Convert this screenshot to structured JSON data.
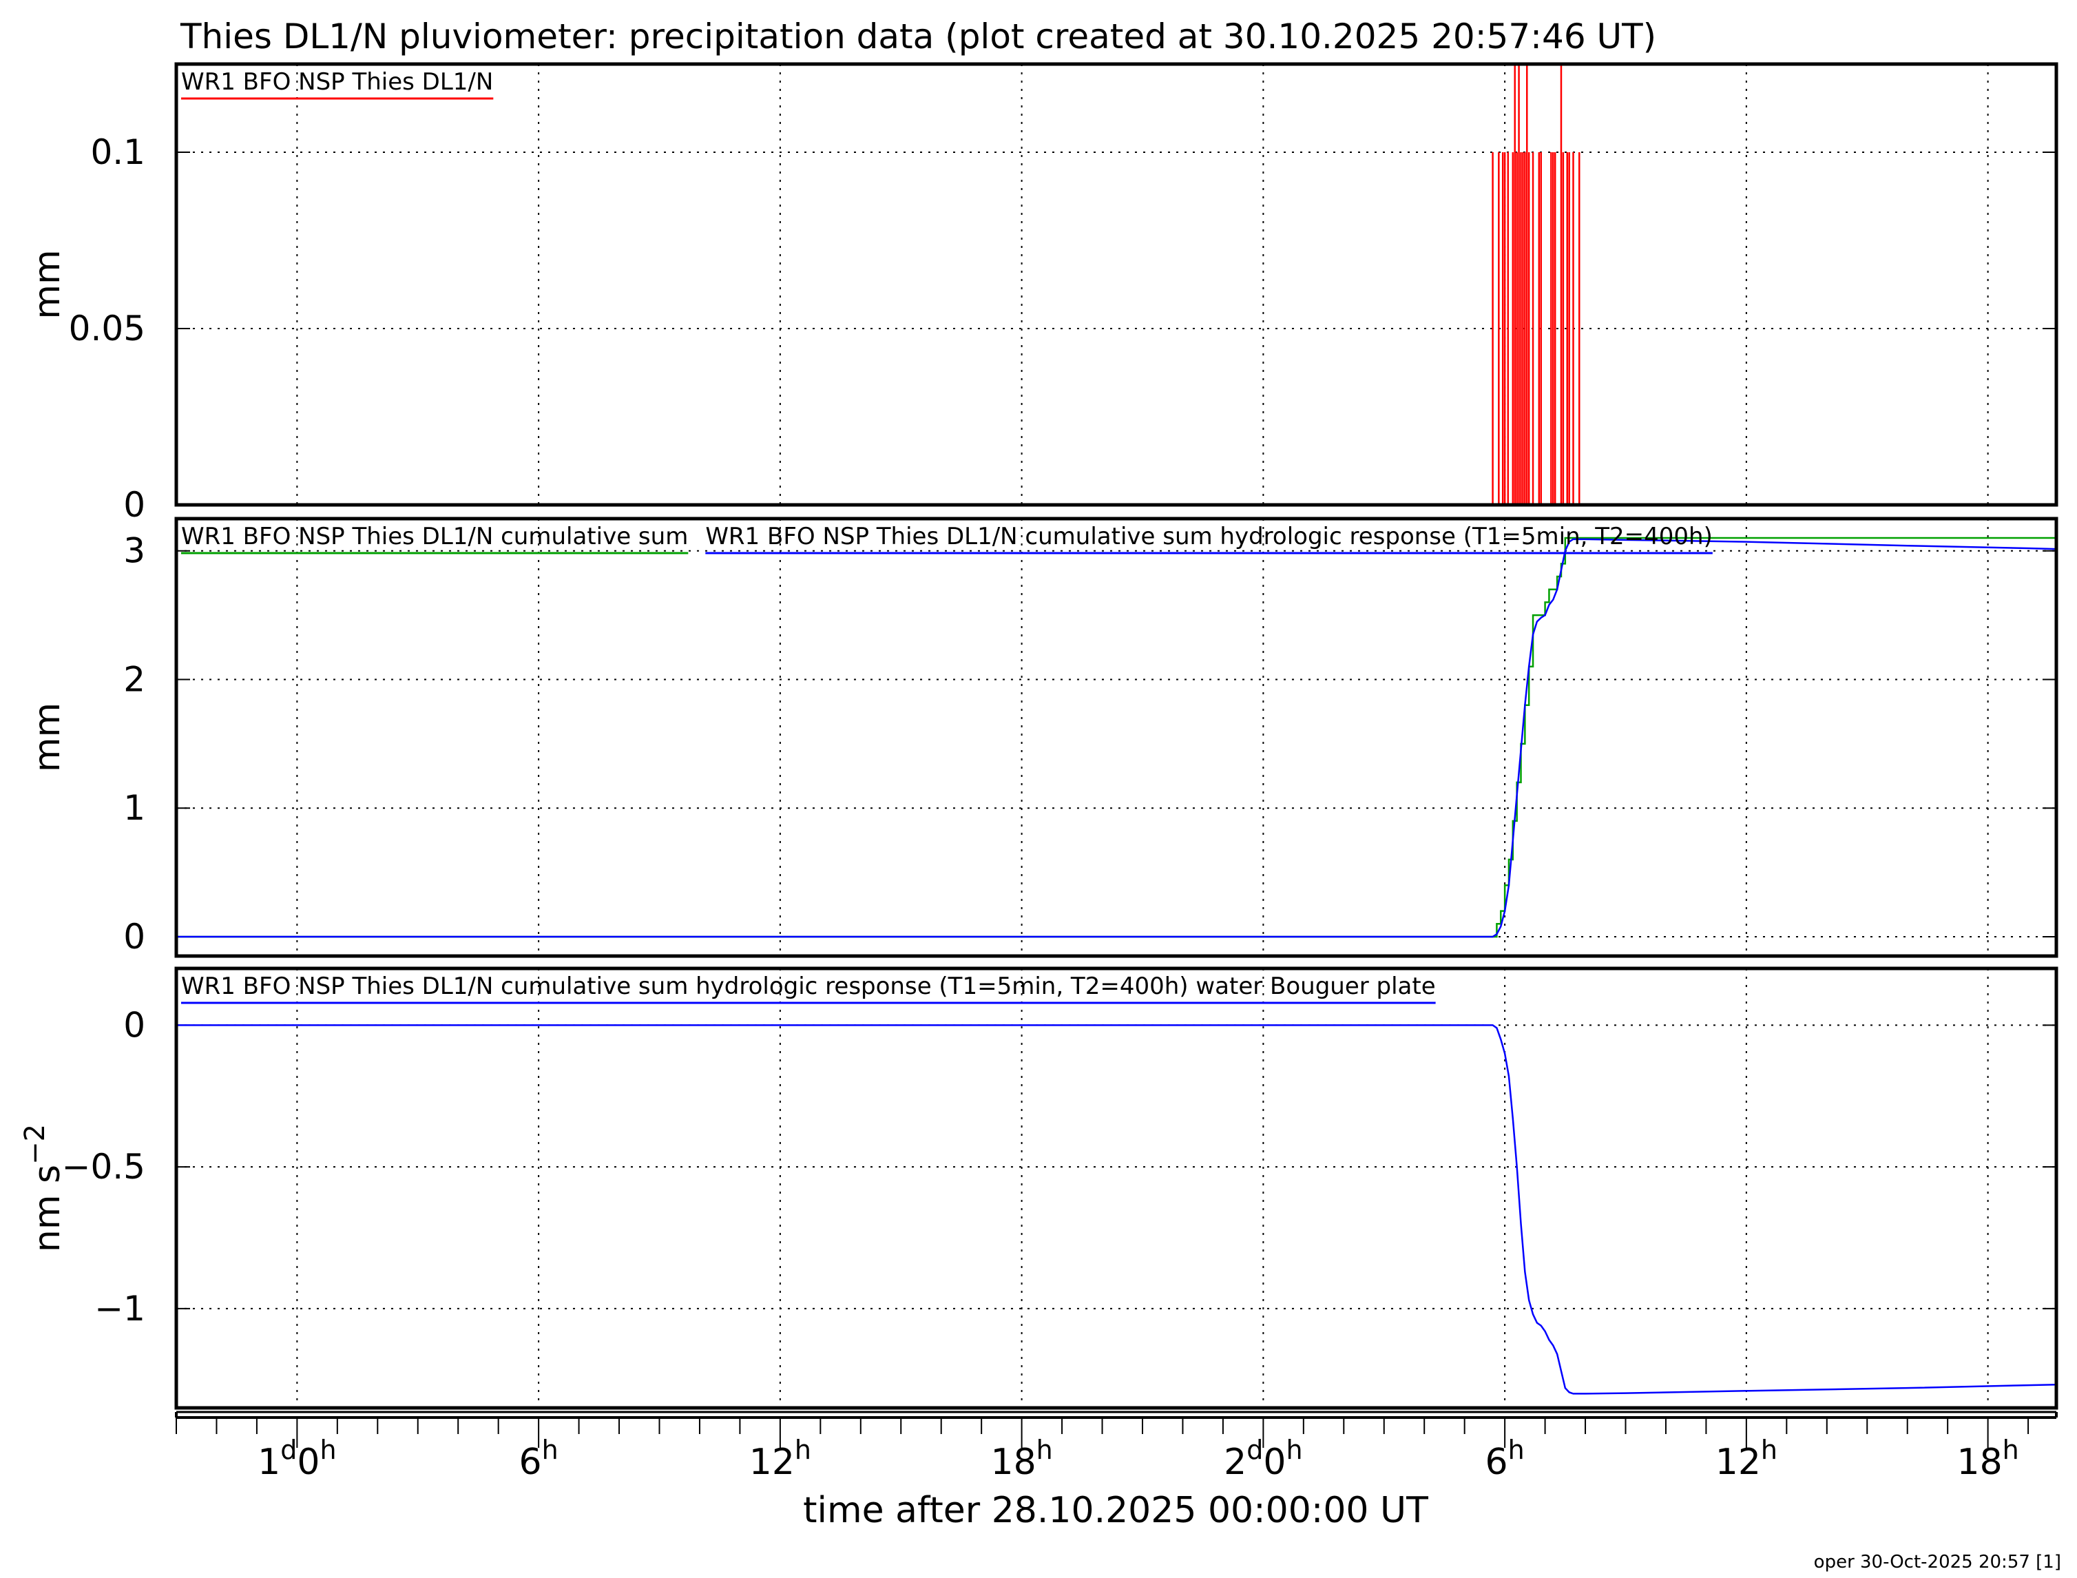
{
  "title": "Thies DL1/N pluviometer: precipitation data (plot created at 30.10.2025 20:57:46 UT)",
  "footer": "oper 30-Oct-2025 20:57 [1]",
  "colors": {
    "red": "#ff0000",
    "green": "#00a000",
    "blue": "#0000ff",
    "grid": "#000000",
    "frame": "#000000"
  },
  "chart_data": [
    {
      "type": "line",
      "panel": "top",
      "ylabel": "mm",
      "ylim": [
        0,
        0.125
      ],
      "yticks": [
        0,
        0.05,
        0.1
      ],
      "ytick_labels": [
        "0",
        "0.05",
        "0.1"
      ],
      "grid": true,
      "series": [
        {
          "name": "WR1 BFO NSP Thies DL1/N",
          "color": "red",
          "style": "spikes",
          "baseline": 0,
          "x": [
            -6,
            29.7,
            29.75,
            29.85,
            29.95,
            30.0,
            30.08,
            30.15,
            30.2,
            30.25,
            30.3,
            30.35,
            30.4,
            30.45,
            30.5,
            30.55,
            30.6,
            30.65,
            30.7,
            30.75,
            30.8,
            30.85,
            30.9,
            30.95,
            31.0,
            31.05,
            31.1,
            31.15,
            31.2,
            31.25,
            31.3,
            31.35,
            31.4,
            31.45,
            31.55,
            31.6,
            31.65,
            31.7,
            31.75,
            31.8,
            31.85,
            31.9,
            31.95,
            32.0,
            32.05,
            32.1,
            32.15,
            32.2,
            32.25,
            32.35,
            32.5,
            32.6,
            32.7,
            32.8,
            32.85,
            32.95,
            33.0,
            33.1,
            33.2,
            33.3,
            33.4,
            33.5,
            33.6,
            33.7,
            33.8,
            33.9,
            34.0,
            34.1,
            34.2,
            34.3,
            34.4,
            34.5,
            34.6,
            34.7,
            34.8,
            34.9,
            35.0,
            35.1,
            35.2,
            35.3,
            35.4,
            35.5,
            35.6,
            35.7,
            35.8,
            35.9,
            36.0,
            36.1,
            36.2,
            36.3,
            36.4,
            36.5,
            36.6,
            36.7,
            36.8,
            36.9,
            37.0,
            37.1,
            37.2,
            37.3,
            37.4,
            37.5,
            37.6,
            37.7,
            37.8,
            37.9,
            38.0,
            38.1,
            38.2,
            38.3,
            38.4,
            38.5,
            38.6,
            38.7,
            38.8,
            38.9,
            39.0,
            39.1,
            39.2,
            39.3,
            39.4,
            39.5,
            39.6,
            39.7,
            39.8,
            39.9,
            40.0,
            40.1,
            40.2,
            40.3,
            40.4,
            40.5,
            40.6,
            40.7,
            40.8,
            40.9,
            41.0,
            41.1,
            41.2,
            41.3,
            41.4,
            41.5,
            41.6,
            41.7,
            41.8,
            41.9,
            42.0,
            42.1,
            42.2,
            42.3,
            42.4,
            42.5,
            42.6,
            42.7,
            42.8,
            42.9,
            43.0,
            43.1
          ],
          "values": [
            0,
            0.1,
            0,
            0.1,
            0.1,
            0.1,
            0.1,
            0,
            0.1,
            0.2,
            0.1,
            0.2,
            0.1,
            0.1,
            0.1,
            0.2,
            0.1,
            0,
            0.1,
            0,
            0,
            0.1,
            0.1,
            0,
            0,
            0,
            0,
            0.1,
            0.1,
            0.1,
            0,
            0,
            0.2,
            0.1,
            0.1,
            0.1,
            0,
            0.1,
            0,
            0,
            0.1,
            0,
            0,
            0,
            0,
            0,
            0,
            0,
            0,
            0,
            0,
            0,
            0,
            0,
            0,
            0,
            0,
            0,
            0,
            0,
            0,
            0,
            0,
            0,
            0,
            0,
            0,
            0,
            0,
            0,
            0,
            0,
            0,
            0,
            0,
            0,
            0,
            0,
            0,
            0,
            0,
            0,
            0,
            0,
            0,
            0,
            0,
            0,
            0,
            0,
            0,
            0,
            0,
            0,
            0,
            0,
            0,
            0,
            0,
            0,
            0,
            0,
            0,
            0,
            0,
            0,
            0,
            0,
            0,
            0,
            0,
            0,
            0,
            0,
            0,
            0,
            0,
            0,
            0,
            0,
            0,
            0,
            0,
            0,
            0,
            0,
            0,
            0,
            0,
            0,
            0,
            0,
            0,
            0,
            0,
            0,
            0,
            0,
            0,
            0,
            0,
            0,
            0,
            0,
            0,
            0,
            0,
            0,
            0,
            0,
            0,
            0,
            0,
            0,
            0,
            0,
            0,
            0
          ]
        }
      ]
    },
    {
      "type": "line",
      "panel": "middle",
      "ylabel": "mm",
      "ylim": [
        -0.15,
        3.25
      ],
      "yticks": [
        0,
        1,
        2,
        3
      ],
      "ytick_labels": [
        "0",
        "1",
        "2",
        "3"
      ],
      "grid": true,
      "series": [
        {
          "name": "WR1 BFO NSP Thies DL1/N cumulative sum",
          "color": "green",
          "style": "step",
          "x": [
            -3,
            29.7,
            29.8,
            29.9,
            30.0,
            30.1,
            30.2,
            30.3,
            30.4,
            30.5,
            30.6,
            30.7,
            30.8,
            30.9,
            31.0,
            31.1,
            31.2,
            31.3,
            31.4,
            31.5,
            31.6,
            31.7,
            31.8,
            31.9,
            32.0,
            46.5
          ],
          "values": [
            0,
            0,
            0.1,
            0.2,
            0.4,
            0.6,
            0.9,
            1.2,
            1.5,
            1.8,
            2.1,
            2.5,
            2.5,
            2.5,
            2.6,
            2.7,
            2.7,
            2.8,
            2.9,
            3.1,
            3.1,
            3.1,
            3.1,
            3.1,
            3.1,
            3.1
          ]
        },
        {
          "name": "WR1 BFO NSP Thies DL1/N cumulative sum hydrologic response (T1=5min, T2=400h)",
          "color": "blue",
          "style": "line",
          "x": [
            -3,
            29.7,
            29.8,
            29.9,
            30.0,
            30.1,
            30.2,
            30.3,
            30.4,
            30.5,
            30.6,
            30.7,
            30.8,
            30.9,
            31.0,
            31.1,
            31.2,
            31.3,
            31.4,
            31.5,
            31.6,
            31.7,
            31.8,
            32.0,
            33.0,
            36.0,
            40.0,
            43.0,
            46.5
          ],
          "values": [
            0,
            0,
            0.02,
            0.08,
            0.2,
            0.4,
            0.75,
            1.1,
            1.45,
            1.8,
            2.1,
            2.35,
            2.45,
            2.48,
            2.5,
            2.58,
            2.62,
            2.7,
            2.85,
            3.0,
            3.07,
            3.09,
            3.09,
            3.09,
            3.085,
            3.07,
            3.04,
            3.02,
            2.99
          ]
        }
      ]
    },
    {
      "type": "line",
      "panel": "bottom",
      "ylabel": "nm s",
      "ylabel_superscript": "−2",
      "ylim": [
        -1.35,
        0.2
      ],
      "yticks": [
        -1,
        -0.5,
        0
      ],
      "ytick_labels": [
        "−1",
        "−0.5",
        "0"
      ],
      "grid": true,
      "series": [
        {
          "name": "WR1 BFO NSP Thies DL1/N cumulative sum hydrologic response (T1=5min, T2=400h) water Bouguer plate",
          "color": "blue",
          "style": "line",
          "x": [
            -3,
            29.7,
            29.8,
            29.9,
            30.0,
            30.1,
            30.2,
            30.3,
            30.4,
            30.5,
            30.6,
            30.7,
            30.8,
            30.9,
            31.0,
            31.1,
            31.2,
            31.3,
            31.4,
            31.5,
            31.6,
            31.7,
            31.8,
            32.0,
            33.0,
            36.0,
            40.0,
            43.0,
            46.5
          ],
          "values": [
            0,
            0,
            -0.01,
            -0.05,
            -0.1,
            -0.18,
            -0.33,
            -0.5,
            -0.7,
            -0.87,
            -0.97,
            -1.02,
            -1.05,
            -1.06,
            -1.08,
            -1.11,
            -1.13,
            -1.16,
            -1.22,
            -1.28,
            -1.295,
            -1.3,
            -1.3,
            -1.3,
            -1.298,
            -1.29,
            -1.28,
            -1.27,
            -1.26
          ]
        }
      ]
    }
  ],
  "x_axis": {
    "label": "time after 28.10.2025 00:00:00 UT",
    "xlim": [
      -3,
      43.7
    ],
    "major_ticks": [
      {
        "x": 0,
        "day": "1",
        "hour": "0"
      },
      {
        "x": 6,
        "day": "",
        "hour": "6"
      },
      {
        "x": 12,
        "day": "",
        "hour": "12"
      },
      {
        "x": 18,
        "day": "",
        "hour": "18"
      },
      {
        "x": 24,
        "day": "2",
        "hour": "0"
      },
      {
        "x": 30,
        "day": "",
        "hour": "6"
      },
      {
        "x": 36,
        "day": "",
        "hour": "12"
      },
      {
        "x": 42,
        "day": "",
        "hour": "18"
      }
    ],
    "day_superscript": "d",
    "hour_superscript": "h"
  }
}
